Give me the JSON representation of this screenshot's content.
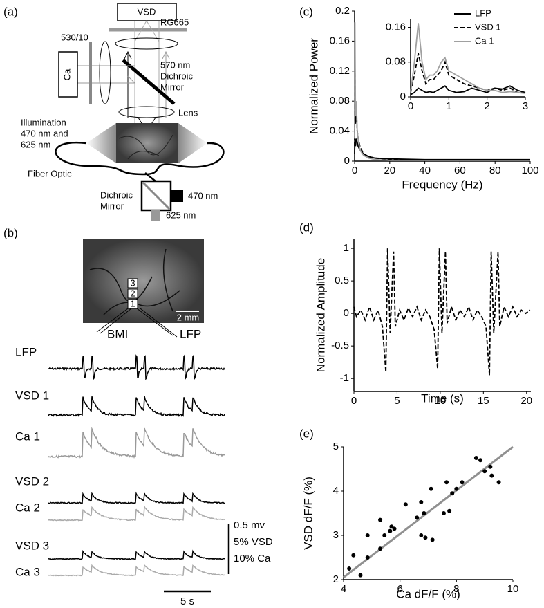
{
  "panel_a": {
    "label": "(a)",
    "camera": "VSD",
    "emission_filter": "RG665",
    "excitation_filter": "530/10",
    "ca_camera": "Ca",
    "dichroic_label": [
      "570 nm",
      "Dichroic",
      "Mirror"
    ],
    "lens": "Lens",
    "illumination": [
      "Illumination",
      "470 nm and",
      "625 nm"
    ],
    "fiber": "Fiber Optic",
    "source_mirror": [
      "Dichroic",
      "Mirror"
    ],
    "led_blue": "470 nm",
    "led_red": "625 nm"
  },
  "panel_b": {
    "label": "(b)",
    "sites": [
      "3",
      "2",
      "1"
    ],
    "scale_bar": "2 mm",
    "electrodes": [
      "BMI",
      "LFP"
    ],
    "traces": [
      "LFP",
      "VSD 1",
      "Ca 1",
      "VSD 2",
      "Ca 2",
      "VSD 3",
      "Ca 3"
    ],
    "amplitude_scale": [
      "0.5 mv",
      "5% VSD",
      "10% Ca"
    ],
    "time_scale": "5 s"
  },
  "chart_data": [
    {
      "type": "line",
      "panel": "(c)",
      "x_label": "Frequency (Hz)",
      "y_label": "Normalized Power",
      "xlim": [
        0,
        100
      ],
      "ylim": [
        0,
        0.2
      ],
      "xticks": [
        0,
        20,
        40,
        60,
        80,
        100
      ],
      "yticks": [
        0,
        0.04,
        0.08,
        0.12,
        0.16,
        0.2
      ],
      "legend": "upper right",
      "x": [
        0,
        0.2,
        0.5,
        0.8,
        1,
        1.5,
        2,
        3,
        5,
        8,
        12,
        20,
        40,
        60,
        80,
        100
      ],
      "series": [
        {
          "name": "LFP",
          "color": "#000000",
          "dash": false,
          "values": [
            0.01,
            0.03,
            0.02,
            0.025,
            0.03,
            0.025,
            0.02,
            0.015,
            0.01,
            0.006,
            0.004,
            0.003,
            0.002,
            0.002,
            0.002,
            0.002
          ]
        },
        {
          "name": "VSD 1",
          "color": "#000000",
          "dash": true,
          "values": [
            0.02,
            0.135,
            0.05,
            0.06,
            0.07,
            0.04,
            0.03,
            0.02,
            0.01,
            0.006,
            0.004,
            0.002,
            0.001,
            0.001,
            0.001,
            0.001
          ]
        },
        {
          "name": "Ca 1",
          "color": "#a0a0a0",
          "dash": false,
          "values": [
            0.03,
            0.185,
            0.06,
            0.07,
            0.08,
            0.04,
            0.03,
            0.015,
            0.008,
            0.004,
            0.002,
            0.001,
            0.001,
            0.001,
            0.001,
            0.001
          ]
        }
      ],
      "inset": {
        "type": "line",
        "xlim": [
          0,
          3
        ],
        "ylim": [
          0,
          0.18
        ],
        "xticks": [
          0,
          1,
          2,
          3
        ],
        "yticks": [
          0,
          0.08,
          0.16
        ],
        "x": [
          0,
          0.1,
          0.2,
          0.3,
          0.4,
          0.5,
          0.6,
          0.7,
          0.8,
          0.9,
          1,
          1.2,
          1.4,
          1.6,
          1.8,
          2,
          2.2,
          2.4,
          2.6,
          2.8,
          3
        ],
        "series": [
          {
            "color": "#000000",
            "dash": false,
            "values": [
              0.005,
              0.01,
              0.02,
              0.015,
              0.01,
              0.012,
              0.01,
              0.015,
              0.02,
              0.025,
              0.015,
              0.01,
              0.012,
              0.02,
              0.015,
              0.01,
              0.02,
              0.018,
              0.025,
              0.015,
              0.01
            ]
          },
          {
            "color": "#000000",
            "dash": true,
            "values": [
              0.01,
              0.05,
              0.1,
              0.06,
              0.03,
              0.04,
              0.04,
              0.05,
              0.06,
              0.08,
              0.05,
              0.04,
              0.03,
              0.025,
              0.02,
              0.015,
              0.02,
              0.015,
              0.02,
              0.01,
              0.01
            ]
          },
          {
            "color": "#a0a0a0",
            "dash": false,
            "values": [
              0.01,
              0.08,
              0.17,
              0.08,
              0.04,
              0.05,
              0.05,
              0.06,
              0.08,
              0.09,
              0.06,
              0.05,
              0.04,
              0.03,
              0.02,
              0.015,
              0.015,
              0.01,
              0.012,
              0.01,
              0.008
            ]
          }
        ]
      }
    },
    {
      "type": "line",
      "panel": "(d)",
      "x_label": "Time (s)",
      "y_label": "Normalized Amplitude",
      "xlim": [
        0,
        20.5
      ],
      "ylim": [
        -1.2,
        1.15
      ],
      "xticks": [
        0,
        5,
        10,
        15,
        20
      ],
      "yticks": [
        -1,
        -0.5,
        0,
        0.5,
        1
      ],
      "x": [
        0,
        0.3,
        0.8,
        1.3,
        1.8,
        2.3,
        2.8,
        3.3,
        3.7,
        3.9,
        4.2,
        4.6,
        4.8,
        5.3,
        5.8,
        6.3,
        6.8,
        7.3,
        7.8,
        8.3,
        8.8,
        9.3,
        9.7,
        9.9,
        10.2,
        10.6,
        10.8,
        11.3,
        11.8,
        12.3,
        12.8,
        13.3,
        13.8,
        14.3,
        14.8,
        15.3,
        15.7,
        15.9,
        16.2,
        16.7,
        16.9,
        17.4,
        17.9,
        18.4,
        18.9,
        19.4,
        19.9,
        20.4
      ],
      "series": [
        {
          "color": "#000000",
          "dash": true,
          "values": [
            0.1,
            -0.05,
            0.05,
            -0.1,
            0.1,
            -0.1,
            0.05,
            -0.2,
            -0.9,
            1.0,
            -0.3,
            0.95,
            -0.2,
            0.05,
            -0.1,
            0.08,
            -0.05,
            0.1,
            -0.1,
            0.05,
            -0.05,
            -0.25,
            -0.85,
            1.0,
            -0.3,
            0.95,
            -0.15,
            0.1,
            -0.1,
            0.05,
            -0.05,
            0.1,
            -0.1,
            0.05,
            -0.05,
            -0.2,
            -0.95,
            0.95,
            -0.3,
            0.95,
            -0.2,
            0.1,
            -0.05,
            0.1,
            -0.05,
            0.05,
            0,
            0.05
          ]
        }
      ]
    },
    {
      "type": "scatter",
      "panel": "(e)",
      "x_label": "Ca dF/F (%)",
      "y_label": "VSD dF/F (%)",
      "xlim": [
        4,
        10
      ],
      "ylim": [
        2,
        5
      ],
      "xticks": [
        4,
        6,
        8,
        10
      ],
      "yticks": [
        2,
        3,
        4,
        5
      ],
      "color": "#000000",
      "x": [
        4.2,
        4.35,
        4.6,
        4.85,
        4.85,
        5.3,
        5.3,
        5.45,
        5.7,
        5.8,
        5.65,
        6.2,
        6.6,
        6.75,
        6.75,
        6.85,
        6.9,
        7.15,
        7.1,
        7.55,
        7.65,
        7.75,
        7.85,
        8.0,
        8.2,
        8.7,
        8.85,
        9.0,
        9.2,
        9.25,
        9.5
      ],
      "values": [
        2.25,
        2.55,
        2.1,
        3.0,
        2.5,
        3.35,
        2.7,
        3.0,
        3.2,
        3.15,
        3.1,
        3.7,
        3.4,
        3.75,
        3.0,
        3.5,
        2.95,
        2.9,
        4.05,
        3.5,
        4.2,
        3.55,
        3.95,
        4.05,
        4.2,
        4.75,
        4.7,
        4.45,
        4.55,
        4.35,
        4.2
      ],
      "trend_line": {
        "color": "#909090",
        "x": [
          4,
          10
        ],
        "values": [
          2.05,
          5.0
        ]
      }
    }
  ]
}
